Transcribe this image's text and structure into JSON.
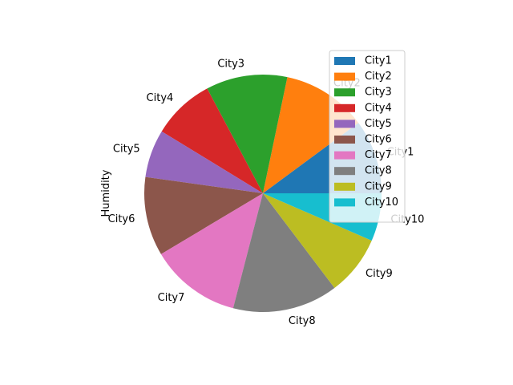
{
  "chart_data": {
    "type": "pie",
    "ylabel": "Humidity",
    "categories": [
      "City1",
      "City2",
      "City3",
      "City4",
      "City5",
      "City6",
      "City7",
      "City8",
      "City9",
      "City10"
    ],
    "values": [
      62,
      71,
      68,
      52,
      40,
      66,
      76,
      88,
      50,
      40
    ],
    "colors": [
      "#1f77b4",
      "#ff7f0e",
      "#2ca02c",
      "#d62728",
      "#9467bd",
      "#8c564b",
      "#e377c2",
      "#7f7f7f",
      "#bcbd22",
      "#17becf"
    ],
    "start_angle_deg": 0,
    "direction": "counterclockwise",
    "legend": {
      "position": "top-right",
      "entries": [
        "City1",
        "City2",
        "City3",
        "City4",
        "City5",
        "City6",
        "City7",
        "City8",
        "City9",
        "City10"
      ]
    }
  }
}
